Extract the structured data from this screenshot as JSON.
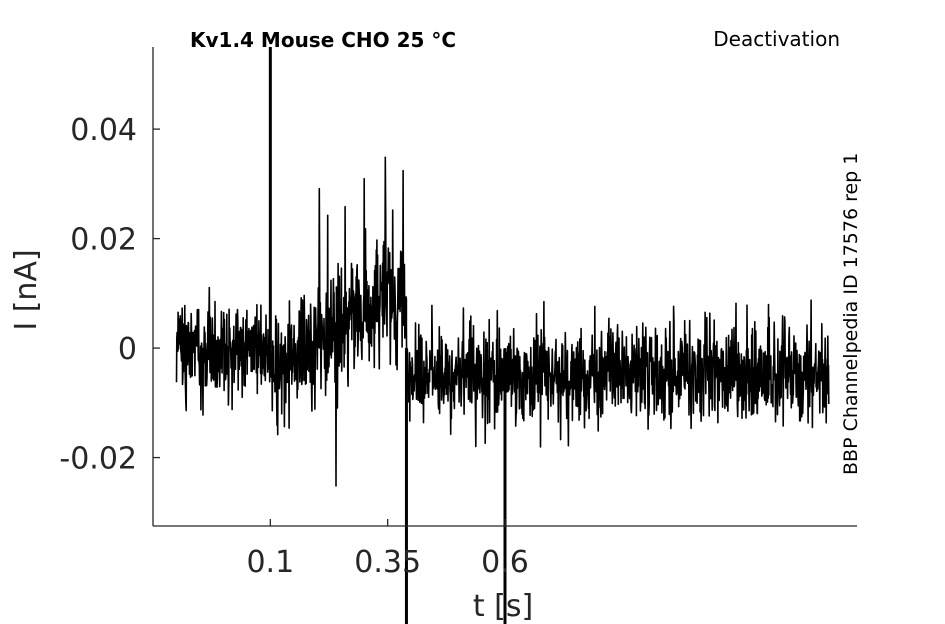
{
  "chart_data": {
    "type": "line",
    "title": "Kv1.4  Mouse  CHO  25 °C",
    "protocol": "Deactivation",
    "source_label": "BBP Channelpedia ID 17576 rep 1",
    "xlabel": "t [s]",
    "ylabel": "I [nA]",
    "xlim": [
      -0.15,
      1.35
    ],
    "ylim": [
      -0.0325,
      0.055
    ],
    "x_ticks": [
      0.1,
      0.35,
      0.6
    ],
    "x_tick_labels": [
      "0.1",
      "0.35",
      "0.6"
    ],
    "y_ticks": [
      -0.02,
      0,
      0.02,
      0.04
    ],
    "y_tick_labels": [
      "-0.02",
      "0",
      "0.02",
      "0.04"
    ],
    "grid": false,
    "line_color": "#000000",
    "series": [
      {
        "segments": [
          {
            "x0": -0.1,
            "x1": 0.1,
            "mean": 0.0,
            "noise": 0.0055,
            "peak": 0.009
          },
          {
            "x0": 0.1,
            "x1": 0.39,
            "mean_start": -0.004,
            "mean_end": 0.011,
            "noise": 0.0075,
            "peak": 0.036
          },
          {
            "x0": 0.39,
            "x1": 0.6,
            "mean": -0.005,
            "noise": 0.0055,
            "peak": 0.009
          },
          {
            "x0": 0.6,
            "x1": 1.29,
            "mean": -0.005,
            "noise": 0.0055,
            "peak": 0.009
          }
        ],
        "spikes": [
          {
            "x": 0.1,
            "y": 0.055
          },
          {
            "x": 0.39,
            "y": -0.0325
          },
          {
            "x": 0.6,
            "y": -0.0325
          }
        ]
      }
    ]
  }
}
